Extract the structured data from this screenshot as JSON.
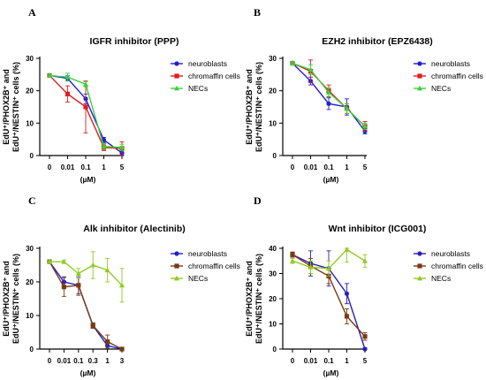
{
  "chart_data": [
    {
      "type": "line",
      "panel": "A",
      "title": "IGFR inhibitor (PPP)",
      "ylabel_lines": [
        "EdU⁺/PHOX2B⁺ and",
        "EdU⁺/NESTIN⁺ cells (%)"
      ],
      "xlabel": "(µM)",
      "categories": [
        "0",
        "0.01",
        "0.1",
        "1",
        "5"
      ],
      "ylim": [
        0,
        30
      ],
      "yticks": [
        0,
        10,
        20,
        30
      ],
      "legend_position": "right",
      "series": [
        {
          "name": "neuroblasts",
          "color": "#1f1fd6",
          "marker": "circle",
          "values": [
            24.7,
            23.8,
            17.5,
            4.8,
            0.8
          ],
          "errors": [
            0.4,
            0.8,
            1.5,
            0.8,
            1.5
          ]
        },
        {
          "name": "chromaffin cells",
          "color": "#e31b1b",
          "marker": "square",
          "values": [
            24.7,
            19.0,
            15.0,
            2.5,
            2.2
          ],
          "errors": [
            0.4,
            2.5,
            8.0,
            1.0,
            2.0
          ]
        },
        {
          "name": "NECs",
          "color": "#3ad13a",
          "marker": "triangle",
          "values": [
            24.7,
            24.2,
            22.0,
            2.8,
            2.5
          ],
          "errors": [
            0.4,
            1.2,
            0.8,
            1.0,
            1.0
          ]
        }
      ]
    },
    {
      "type": "line",
      "panel": "B",
      "title": "EZH2 inhibitor (EPZ6438)",
      "ylabel_lines": [
        "EdU⁺/PHOX2B⁺ and",
        "EdU⁺/NESTIN⁺ cells (%)"
      ],
      "xlabel": "(µM)",
      "categories": [
        "0",
        "0.01",
        "0.1",
        "1",
        "5"
      ],
      "ylim": [
        0,
        30
      ],
      "yticks": [
        0,
        10,
        20,
        30
      ],
      "legend_position": "right",
      "series": [
        {
          "name": "neuroblasts",
          "color": "#1f1fd6",
          "marker": "circle",
          "values": [
            28.5,
            23.0,
            16.0,
            15.0,
            7.5
          ],
          "errors": [
            0.5,
            1.2,
            1.8,
            2.5,
            0.8
          ]
        },
        {
          "name": "chromaffin cells",
          "color": "#e31b1b",
          "marker": "square",
          "values": [
            28.5,
            26.0,
            20.0,
            14.5,
            9.0
          ],
          "errors": [
            0.5,
            3.5,
            1.8,
            1.5,
            1.5
          ]
        },
        {
          "name": "NECs",
          "color": "#3ad13a",
          "marker": "triangle",
          "values": [
            28.5,
            26.5,
            19.5,
            14.5,
            9.0
          ],
          "errors": [
            0.5,
            1.5,
            1.5,
            1.5,
            1.0
          ]
        }
      ]
    },
    {
      "type": "line",
      "panel": "C",
      "title": "Alk inhibitor (Alectinib)",
      "ylabel_lines": [
        "EdU⁺/PHOX2B⁺ and",
        "EdU⁺/NESTIN⁺ cells (%)"
      ],
      "xlabel": "(µM)",
      "categories": [
        "0",
        "0.01",
        "0.1",
        "0.3",
        "1",
        "3"
      ],
      "ylim": [
        0,
        30
      ],
      "yticks": [
        0,
        10,
        20,
        30
      ],
      "legend_position": "right",
      "series": [
        {
          "name": "neuroblasts",
          "color": "#1f1fd6",
          "marker": "circle",
          "values": [
            26.0,
            20.0,
            19.0,
            7.0,
            1.0,
            0.0
          ],
          "errors": [
            0.3,
            1.5,
            2.5,
            0.8,
            0.8,
            0.3
          ]
        },
        {
          "name": "chromaffin cells",
          "color": "#7a3b10",
          "marker": "square",
          "values": [
            26.0,
            18.5,
            19.0,
            7.0,
            2.2,
            0.0
          ],
          "errors": [
            0.3,
            2.8,
            3.0,
            0.8,
            2.0,
            0.5
          ]
        },
        {
          "name": "NECs",
          "color": "#8fcc22",
          "marker": "triangle",
          "values": [
            26.0,
            26.0,
            22.5,
            25.0,
            23.5,
            19.0
          ],
          "errors": [
            0.3,
            0.5,
            1.5,
            4.0,
            3.5,
            5.0
          ]
        }
      ]
    },
    {
      "type": "line",
      "panel": "D",
      "title": "Wnt inhibitor (ICG001)",
      "ylabel_lines": [
        "EdU⁺/PHOX2B⁺ and",
        "EdU⁺/NESTIN⁺ cells (%)"
      ],
      "xlabel": "(µM)",
      "categories": [
        "0",
        "0.01",
        "0.1",
        "1",
        "5"
      ],
      "ylim": [
        0,
        40
      ],
      "yticks": [
        0,
        10,
        20,
        30,
        40
      ],
      "legend_position": "right",
      "series": [
        {
          "name": "neuroblasts",
          "color": "#2a1fb8",
          "marker": "circle",
          "values": [
            37.5,
            34.0,
            32.0,
            22.0,
            0.0
          ],
          "errors": [
            1.0,
            5.0,
            7.0,
            4.0,
            0.5
          ]
        },
        {
          "name": "chromaffin cells",
          "color": "#7a3b10",
          "marker": "square",
          "values": [
            37.5,
            33.0,
            29.0,
            13.0,
            5.0
          ],
          "errors": [
            1.0,
            3.0,
            3.0,
            3.0,
            1.5
          ]
        },
        {
          "name": "NECs",
          "color": "#8fcc22",
          "marker": "triangle",
          "values": [
            35.0,
            32.5,
            32.0,
            39.5,
            35.0
          ],
          "errors": [
            1.0,
            2.5,
            3.0,
            5.0,
            2.5
          ]
        }
      ]
    }
  ]
}
